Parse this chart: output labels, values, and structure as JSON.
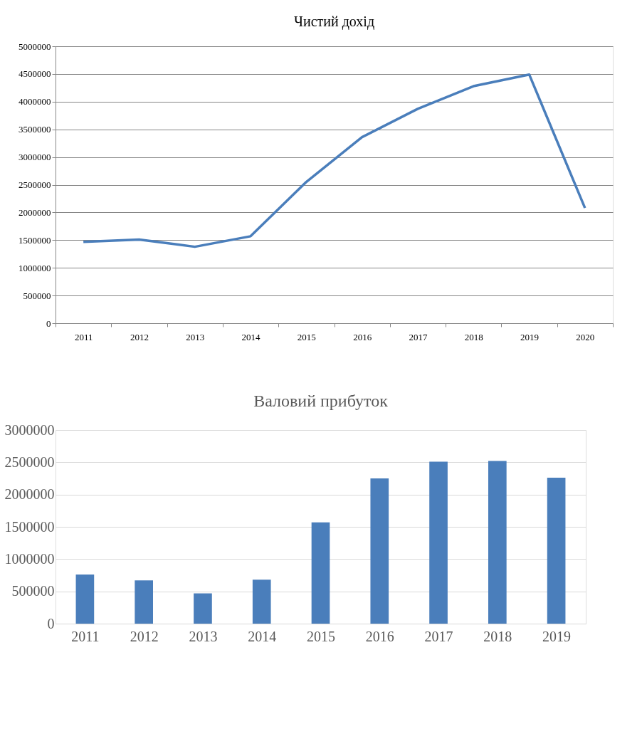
{
  "chart_data": [
    {
      "type": "line",
      "title": "Чистий дохід",
      "categories": [
        "2011",
        "2012",
        "2013",
        "2014",
        "2015",
        "2016",
        "2017",
        "2018",
        "2019",
        "2020"
      ],
      "series": [
        {
          "color": "#4a7ebb",
          "values": [
            1470000,
            1510000,
            1380000,
            1570000,
            2550000,
            3360000,
            3870000,
            4280000,
            4490000,
            2080000
          ]
        }
      ],
      "ylim": [
        0,
        5000000
      ],
      "yticks": [
        0,
        500000,
        1000000,
        1500000,
        2000000,
        2500000,
        3000000,
        3500000,
        4000000,
        4500000,
        5000000
      ],
      "grid": "y",
      "legend": false,
      "marker": "none",
      "line_style": "solid"
    },
    {
      "type": "bar",
      "title": "Валовий прибуток",
      "categories": [
        "2011",
        "2012",
        "2013",
        "2014",
        "2015",
        "2016",
        "2017",
        "2018",
        "2019"
      ],
      "series": [
        {
          "color": "#4f81bd",
          "values": [
            760000,
            670000,
            470000,
            680000,
            1570000,
            2250000,
            2510000,
            2520000,
            2260000
          ]
        }
      ],
      "ylim": [
        0,
        3000000
      ],
      "yticks": [
        0,
        500000,
        1000000,
        1500000,
        2000000,
        2500000,
        3000000
      ],
      "grid": "y",
      "legend": false
    }
  ]
}
